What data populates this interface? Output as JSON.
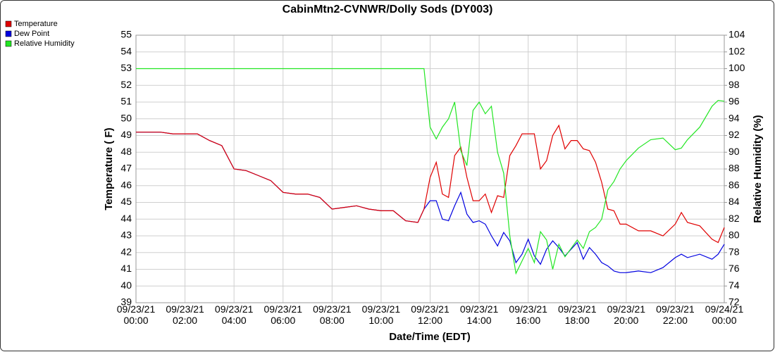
{
  "chart_data": {
    "type": "line",
    "title": "CabinMtn2-CVNWR/Dolly Sods (DY003)",
    "x_label": "Date/Time (EDT)",
    "y_label": "Temperature ( F)",
    "y2_label": "Relative Humidity (%)",
    "legend": "top-left",
    "grid": true,
    "xlim": [
      0,
      24
    ],
    "xticks": [
      {
        "value": 0,
        "label": "09/23/21 00:00"
      },
      {
        "value": 2,
        "label": "09/23/21 02:00"
      },
      {
        "value": 4,
        "label": "09/23/21 04:00"
      },
      {
        "value": 6,
        "label": "09/23/21 06:00"
      },
      {
        "value": 8,
        "label": "09/23/21 08:00"
      },
      {
        "value": 10,
        "label": "09/23/21 10:00"
      },
      {
        "value": 12,
        "label": "09/23/21 12:00"
      },
      {
        "value": 14,
        "label": "09/23/21 14:00"
      },
      {
        "value": 16,
        "label": "09/23/21 16:00"
      },
      {
        "value": 18,
        "label": "09/23/21 18:00"
      },
      {
        "value": 20,
        "label": "09/23/21 20:00"
      },
      {
        "value": 22,
        "label": "09/23/21 22:00"
      },
      {
        "value": 24,
        "label": "09/24/21 00:00"
      }
    ],
    "ylim": [
      39,
      55
    ],
    "yticks": [
      39,
      40,
      41,
      42,
      43,
      44,
      45,
      46,
      47,
      48,
      49,
      50,
      51,
      52,
      53,
      54,
      55
    ],
    "y2lim": [
      72,
      104
    ],
    "y2ticks": [
      72,
      74,
      76,
      78,
      80,
      82,
      84,
      86,
      88,
      90,
      92,
      94,
      96,
      98,
      100,
      102,
      104
    ],
    "x": [
      0,
      0.5,
      1,
      1.5,
      2,
      2.5,
      3,
      3.5,
      4,
      4.5,
      5,
      5.5,
      6,
      6.5,
      7,
      7.5,
      8,
      8.5,
      9,
      9.5,
      10,
      10.5,
      11,
      11.5,
      11.75,
      12,
      12.25,
      12.5,
      12.75,
      13,
      13.25,
      13.5,
      13.75,
      14,
      14.25,
      14.5,
      14.75,
      15,
      15.25,
      15.5,
      15.75,
      16,
      16.25,
      16.5,
      16.75,
      17,
      17.25,
      17.5,
      17.75,
      18,
      18.25,
      18.5,
      18.75,
      19,
      19.25,
      19.5,
      19.75,
      20,
      20.5,
      21,
      21.5,
      22,
      22.25,
      22.5,
      23,
      23.5,
      23.75,
      24
    ],
    "series": [
      {
        "name": "Temperature",
        "color": "#e00000",
        "values": [
          49.2,
          49.2,
          49.2,
          49.1,
          49.1,
          49.1,
          48.7,
          48.4,
          47.0,
          46.9,
          46.6,
          46.3,
          45.6,
          45.5,
          45.5,
          45.3,
          44.6,
          44.7,
          44.8,
          44.6,
          44.5,
          44.5,
          43.9,
          43.8,
          44.6,
          46.5,
          47.4,
          45.5,
          45.3,
          47.8,
          48.3,
          46.5,
          45.1,
          45.1,
          45.5,
          44.4,
          45.4,
          45.3,
          47.8,
          48.4,
          49.1,
          49.1,
          49.1,
          47.0,
          47.5,
          49.0,
          49.6,
          48.2,
          48.7,
          48.7,
          48.2,
          48.1,
          47.4,
          46.2,
          44.6,
          44.5,
          43.7,
          43.7,
          43.3,
          43.3,
          43.0,
          43.7,
          44.4,
          43.8,
          43.6,
          42.8,
          42.6,
          43.5
        ]
      },
      {
        "name": "Dew Point",
        "color": "#0000e0",
        "values": [
          49.2,
          49.2,
          49.2,
          49.1,
          49.1,
          49.1,
          48.7,
          48.4,
          47.0,
          46.9,
          46.6,
          46.3,
          45.6,
          45.5,
          45.5,
          45.3,
          44.6,
          44.7,
          44.8,
          44.6,
          44.5,
          44.5,
          43.9,
          43.8,
          44.6,
          45.1,
          45.1,
          44.0,
          43.9,
          44.8,
          45.6,
          44.3,
          43.8,
          43.9,
          43.7,
          43.0,
          42.4,
          43.2,
          42.7,
          41.4,
          41.9,
          42.8,
          41.8,
          41.3,
          42.2,
          42.7,
          42.3,
          41.8,
          42.2,
          42.6,
          41.6,
          42.3,
          41.9,
          41.4,
          41.2,
          40.9,
          40.8,
          40.8,
          40.9,
          40.8,
          41.1,
          41.7,
          41.9,
          41.7,
          41.9,
          41.6,
          41.9,
          42.5
        ]
      },
      {
        "name": "Relative Humidity",
        "color": "#22e622",
        "axis": "y2",
        "values": [
          100,
          100,
          100,
          100,
          100,
          100,
          100,
          100,
          100,
          100,
          100,
          100,
          100,
          100,
          100,
          100,
          100,
          100,
          100,
          100,
          100,
          100,
          100,
          100,
          100,
          93,
          91.6,
          93,
          94,
          96,
          90.2,
          88.4,
          95,
          96,
          94.6,
          95.5,
          90,
          87.5,
          80,
          75.5,
          77,
          78.5,
          76.8,
          80.5,
          79.5,
          76,
          79,
          77.5,
          78.5,
          79.5,
          78.5,
          80.5,
          81,
          82,
          85.5,
          86.5,
          88,
          89,
          90.5,
          91.5,
          91.7,
          90.3,
          90.5,
          91.5,
          93,
          95.5,
          96.2,
          96.1
        ]
      }
    ]
  }
}
